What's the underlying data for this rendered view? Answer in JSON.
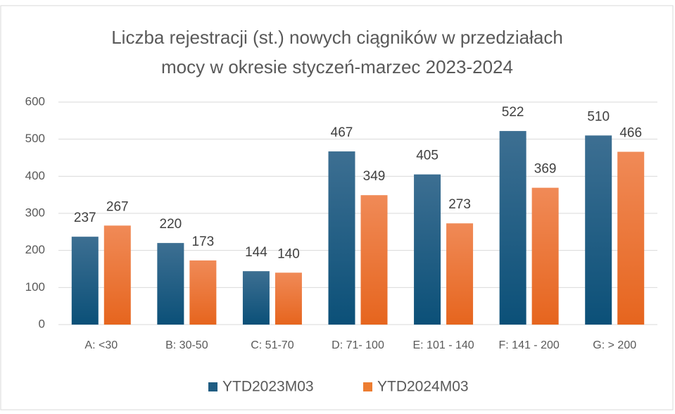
{
  "chart_data": {
    "type": "bar",
    "title": [
      "Liczba rejestracji (st.) nowych ciągników w przedziałach",
      "mocy w okresie styczeń-marzec 2023-2024"
    ],
    "categories": [
      "A: <30",
      "B: 30-50",
      "C: 51-70",
      "D: 71- 100",
      "E: 101 - 140",
      "F: 141 - 200",
      "G: > 200"
    ],
    "series": [
      {
        "name": "YTD2023M03",
        "color": "#1f5c82",
        "values": [
          237,
          220,
          144,
          467,
          405,
          522,
          510
        ]
      },
      {
        "name": "YTD2024M03",
        "color": "#ed7d31",
        "values": [
          267,
          173,
          140,
          349,
          273,
          369,
          466
        ]
      }
    ],
    "ylim": [
      0,
      600
    ],
    "yticks": [
      0,
      100,
      200,
      300,
      400,
      500,
      600
    ],
    "grid": true,
    "legend": "bottom"
  }
}
